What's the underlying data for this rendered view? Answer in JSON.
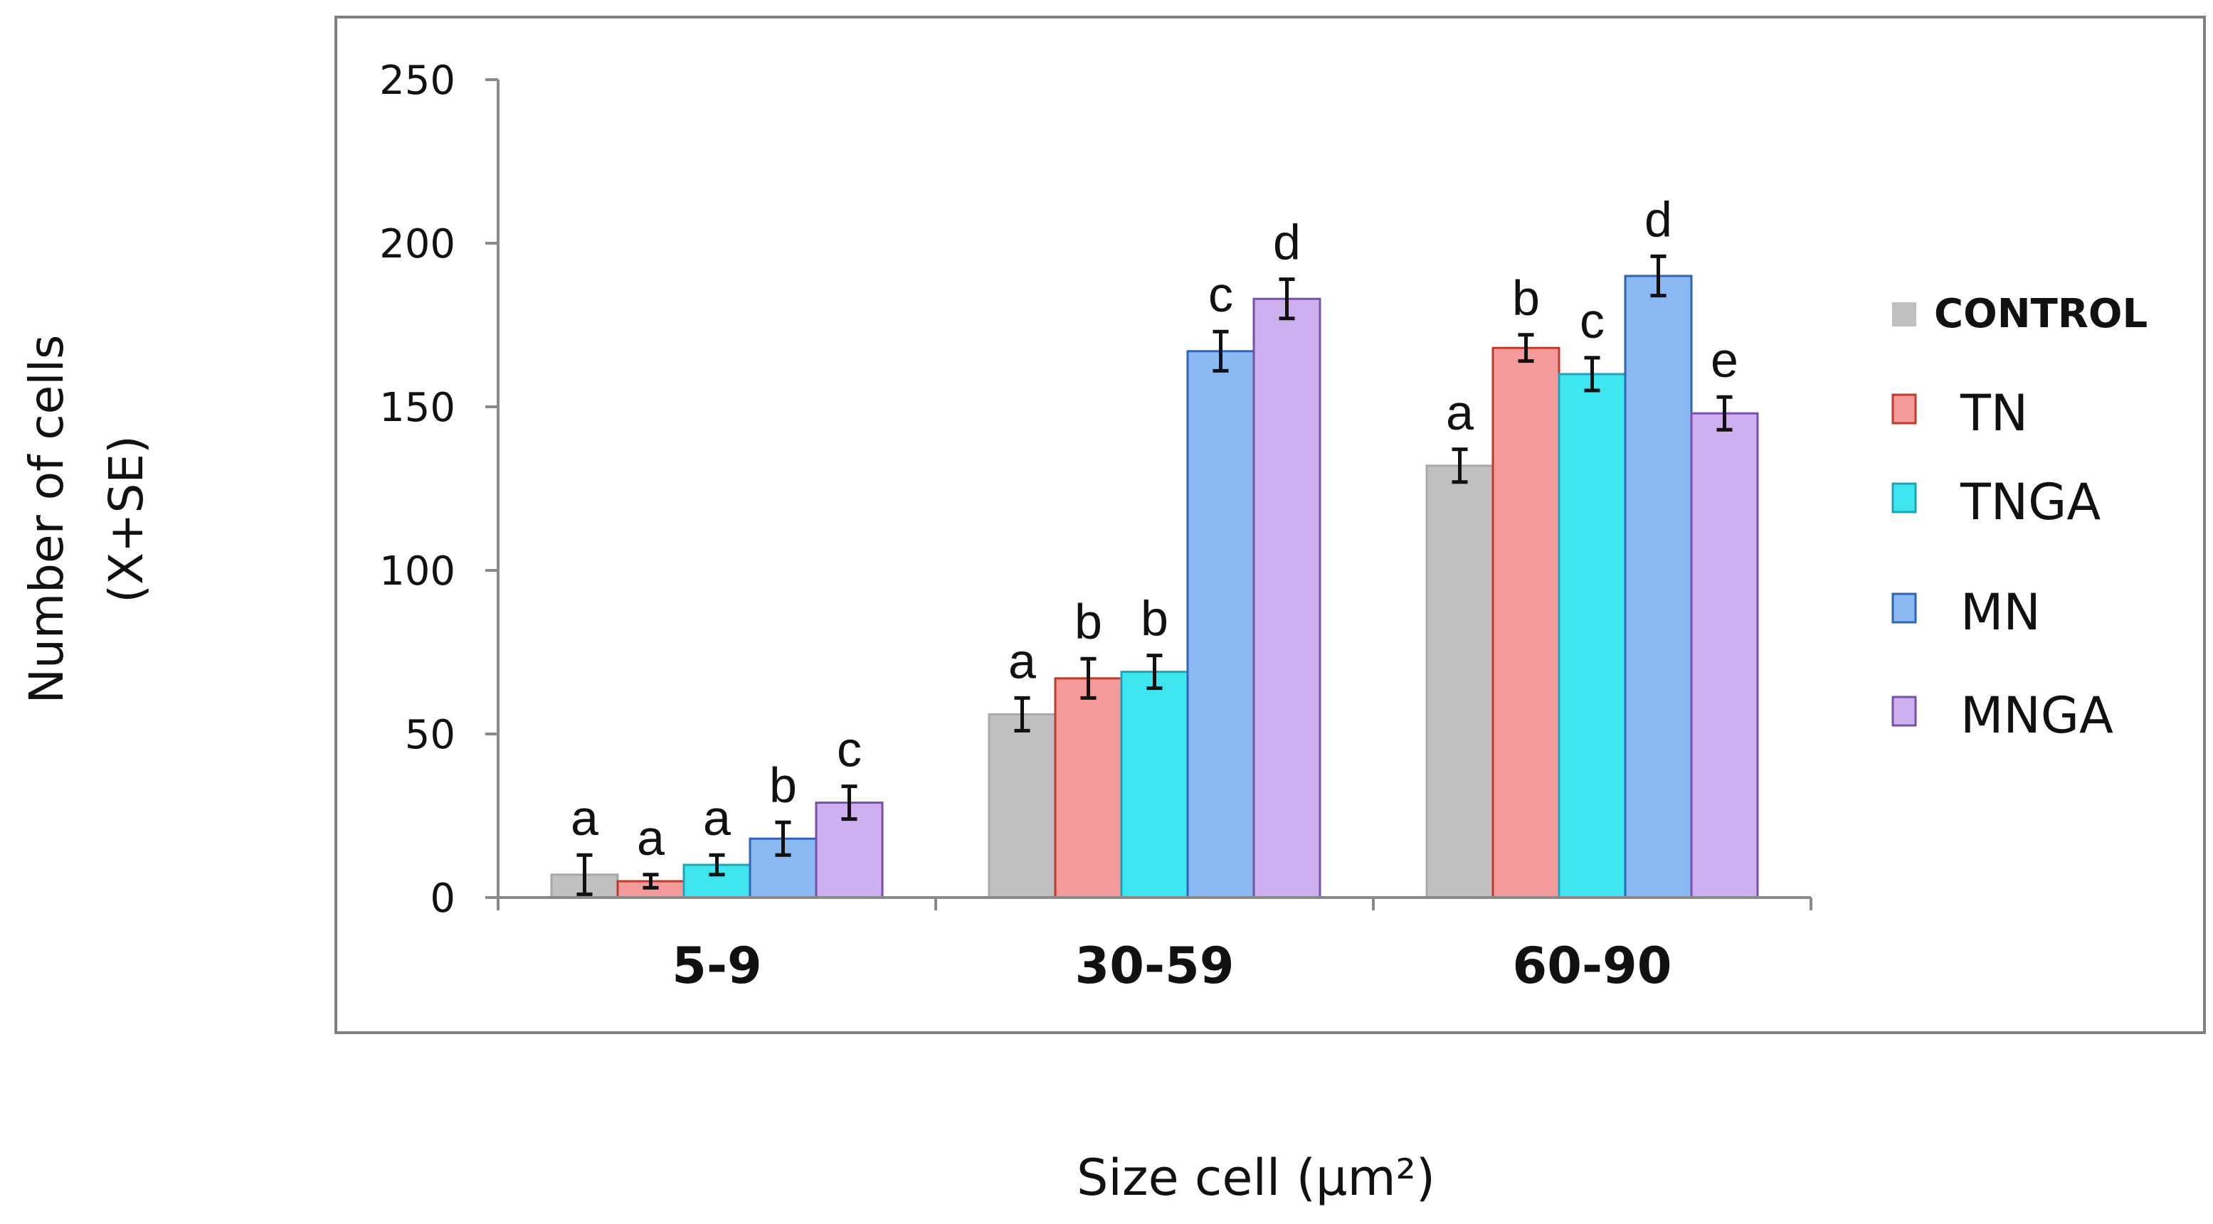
{
  "chart_data": {
    "type": "bar",
    "ylabel_line1": "Number of cells",
    "ylabel_line2": "(X+SE)",
    "xlabel": "Size cell (μm²)",
    "ylim": [
      0,
      250
    ],
    "yticks": [
      0,
      50,
      100,
      150,
      200,
      250
    ],
    "categories": [
      "5-9",
      "30-59",
      "60-90"
    ],
    "legend_position": "right",
    "series": [
      {
        "name": "CONTROL",
        "color": "#c0c0c0",
        "edge": "#a8a8a8",
        "values": [
          7,
          56,
          132
        ],
        "errors": [
          6,
          5,
          5
        ],
        "letters": [
          "a",
          "a",
          "a"
        ]
      },
      {
        "name": "TN",
        "color": "#f59a9a",
        "edge": "#c0392b",
        "values": [
          5,
          67,
          168
        ],
        "errors": [
          2,
          6,
          4
        ],
        "letters": [
          "a",
          "b",
          "b"
        ]
      },
      {
        "name": "TNGA",
        "color": "#3fe6f0",
        "edge": "#1fa5b8",
        "values": [
          10,
          69,
          160
        ],
        "errors": [
          3,
          5,
          5
        ],
        "letters": [
          "a",
          "b",
          "c"
        ]
      },
      {
        "name": "MN",
        "color": "#8ab8f2",
        "edge": "#2e65b8",
        "values": [
          18,
          167,
          190
        ],
        "errors": [
          5,
          6,
          6
        ],
        "letters": [
          "b",
          "c",
          "d"
        ]
      },
      {
        "name": "MNGA",
        "color": "#cdb0f0",
        "edge": "#7a4fa8",
        "values": [
          29,
          183,
          148
        ],
        "errors": [
          5,
          6,
          5
        ],
        "letters": [
          "c",
          "d",
          "e"
        ]
      }
    ]
  }
}
